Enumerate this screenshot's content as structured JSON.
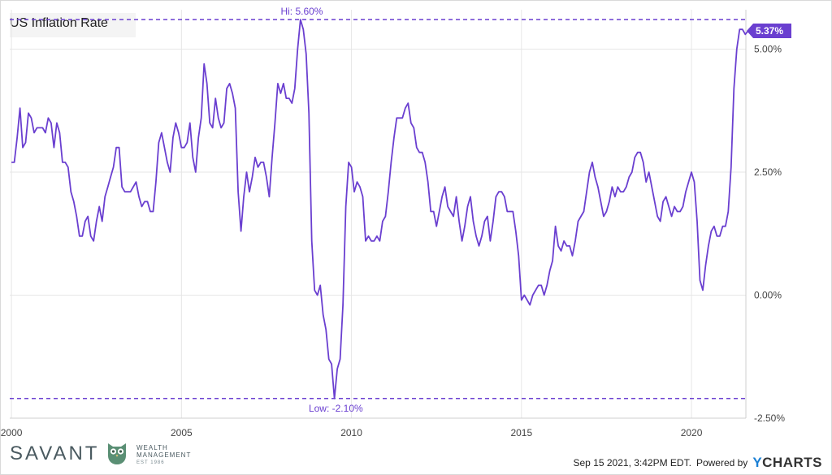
{
  "chart_data": {
    "type": "line",
    "title": "US Inflation Rate",
    "x_ticks": [
      "2000",
      "2005",
      "2010",
      "2015",
      "2020"
    ],
    "y_ticks": [
      "-2.50%",
      "0.00%",
      "2.50%",
      "5.00%"
    ],
    "ylim": [
      -2.5,
      5.8
    ],
    "xlim": [
      1999.95,
      2021.6
    ],
    "grid": true,
    "high": {
      "value": 5.6,
      "label": "Hi: 5.60%",
      "date": 2008.54
    },
    "low": {
      "value": -2.1,
      "label": "Low: -2.10%",
      "date": 2009.54
    },
    "last": {
      "value": 5.37,
      "label": "5.37%"
    },
    "series": [
      {
        "color": "#6a3fd0",
        "x_start": 2000.0,
        "x_step": 0.08333,
        "values": [
          2.7,
          2.7,
          3.2,
          3.8,
          3.0,
          3.1,
          3.7,
          3.6,
          3.3,
          3.4,
          3.4,
          3.4,
          3.3,
          3.6,
          3.5,
          3.0,
          3.5,
          3.3,
          2.7,
          2.7,
          2.6,
          2.1,
          1.9,
          1.6,
          1.2,
          1.2,
          1.5,
          1.6,
          1.2,
          1.1,
          1.5,
          1.8,
          1.5,
          2.0,
          2.2,
          2.4,
          2.6,
          3.0,
          3.0,
          2.2,
          2.1,
          2.1,
          2.1,
          2.2,
          2.3,
          2.0,
          1.8,
          1.9,
          1.9,
          1.7,
          1.7,
          2.3,
          3.1,
          3.3,
          3.0,
          2.7,
          2.5,
          3.2,
          3.5,
          3.3,
          3.0,
          3.0,
          3.1,
          3.5,
          2.8,
          2.5,
          3.2,
          3.6,
          4.7,
          4.3,
          3.5,
          3.4,
          4.0,
          3.6,
          3.4,
          3.5,
          4.2,
          4.3,
          4.1,
          3.8,
          2.1,
          1.3,
          2.0,
          2.5,
          2.1,
          2.4,
          2.8,
          2.6,
          2.7,
          2.7,
          2.4,
          2.0,
          2.8,
          3.5,
          4.3,
          4.1,
          4.3,
          4.0,
          4.0,
          3.9,
          4.2,
          5.0,
          5.6,
          5.4,
          4.9,
          3.7,
          1.1,
          0.1,
          0.0,
          0.2,
          -0.4,
          -0.7,
          -1.3,
          -1.4,
          -2.1,
          -1.5,
          -1.3,
          -0.2,
          1.8,
          2.7,
          2.6,
          2.1,
          2.3,
          2.2,
          2.0,
          1.1,
          1.2,
          1.1,
          1.1,
          1.2,
          1.1,
          1.5,
          1.6,
          2.1,
          2.7,
          3.2,
          3.6,
          3.6,
          3.6,
          3.8,
          3.9,
          3.5,
          3.4,
          3.0,
          2.9,
          2.9,
          2.7,
          2.3,
          1.7,
          1.7,
          1.4,
          1.7,
          2.0,
          2.2,
          1.8,
          1.7,
          1.6,
          2.0,
          1.5,
          1.1,
          1.4,
          1.8,
          2.0,
          1.5,
          1.2,
          1.0,
          1.2,
          1.5,
          1.6,
          1.1,
          1.5,
          2.0,
          2.1,
          2.1,
          2.0,
          1.7,
          1.7,
          1.7,
          1.3,
          0.8,
          -0.1,
          0.0,
          -0.1,
          -0.2,
          0.0,
          0.1,
          0.2,
          0.2,
          0.0,
          0.2,
          0.5,
          0.7,
          1.4,
          1.0,
          0.9,
          1.1,
          1.0,
          1.0,
          0.8,
          1.1,
          1.5,
          1.6,
          1.7,
          2.1,
          2.5,
          2.7,
          2.4,
          2.2,
          1.9,
          1.6,
          1.7,
          1.9,
          2.2,
          2.0,
          2.2,
          2.1,
          2.1,
          2.2,
          2.4,
          2.5,
          2.8,
          2.9,
          2.9,
          2.7,
          2.3,
          2.5,
          2.2,
          1.9,
          1.6,
          1.5,
          1.9,
          2.0,
          1.8,
          1.6,
          1.8,
          1.7,
          1.7,
          1.8,
          2.1,
          2.3,
          2.5,
          2.3,
          1.5,
          0.3,
          0.1,
          0.6,
          1.0,
          1.3,
          1.4,
          1.2,
          1.2,
          1.4,
          1.4,
          1.7,
          2.6,
          4.2,
          5.0,
          5.4,
          5.4,
          5.3,
          5.37
        ]
      }
    ]
  },
  "footer": {
    "logo_name": "SAVANT",
    "logo_sub": "WEALTH\nMANAGEMENT",
    "logo_est": "EST 1986",
    "timestamp": "Sep 15 2021, 3:42PM EDT.",
    "powered_by": "Powered by",
    "brand_y": "Y",
    "brand_rest": "CHARTS"
  }
}
